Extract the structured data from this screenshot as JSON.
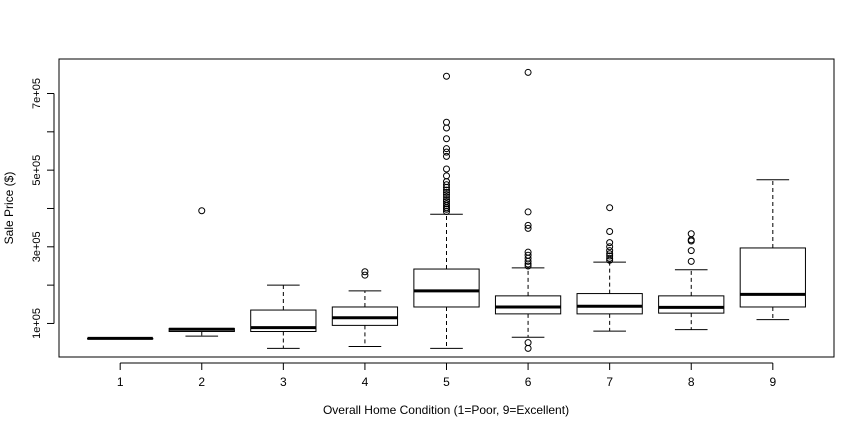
{
  "chart_data": {
    "type": "boxplot",
    "title": "",
    "xlabel": "Overall Home Condition (1=Poor, 9=Excellent)",
    "ylabel": "Sale Price ($)",
    "ylim": [
      12500,
      790000
    ],
    "y_ticks": [
      100000,
      300000,
      500000,
      700000
    ],
    "y_tick_labels": [
      "1e+05",
      "3e+05",
      "5e+05",
      "7e+05"
    ],
    "categories": [
      "1",
      "2",
      "3",
      "4",
      "5",
      "6",
      "7",
      "8",
      "9"
    ],
    "boxes": [
      {
        "category": "1",
        "whisker_low": 61000,
        "q1": 61000,
        "median": 61000,
        "q3": 61000,
        "whisker_high": 61000,
        "outliers": []
      },
      {
        "category": "2",
        "whisker_low": 67000,
        "q1": 79000,
        "median": 85000,
        "q3": 87000,
        "whisker_high": 87000,
        "outliers": [
          394000
        ]
      },
      {
        "category": "3",
        "whisker_low": 35000,
        "q1": 79000,
        "median": 89000,
        "q3": 135000,
        "whisker_high": 200000,
        "outliers": []
      },
      {
        "category": "4",
        "whisker_low": 40000,
        "q1": 95000,
        "median": 115000,
        "q3": 143000,
        "whisker_high": 185000,
        "outliers": [
          226000,
          235000
        ]
      },
      {
        "category": "5",
        "whisker_low": 35000,
        "q1": 143000,
        "median": 185000,
        "q3": 242000,
        "whisker_high": 385000,
        "outliers": [
          392000,
          398000,
          402000,
          407000,
          412000,
          418000,
          423000,
          430000,
          436000,
          442000,
          448000,
          455000,
          462000,
          470000,
          485000,
          503000,
          536000,
          547000,
          556000,
          582000,
          610000,
          625000,
          745000
        ]
      },
      {
        "category": "6",
        "whisker_low": 64000,
        "q1": 125000,
        "median": 143000,
        "q3": 172000,
        "whisker_high": 245000,
        "outliers": [
          35000,
          50000,
          250000,
          255000,
          262000,
          270000,
          278000,
          286000,
          348000,
          356000,
          391000,
          755000
        ]
      },
      {
        "category": "7",
        "whisker_low": 80000,
        "q1": 125000,
        "median": 145000,
        "q3": 178000,
        "whisker_high": 260000,
        "outliers": [
          265000,
          270000,
          276000,
          282000,
          290000,
          300000,
          311000,
          340000,
          402000
        ]
      },
      {
        "category": "8",
        "whisker_low": 84000,
        "q1": 127000,
        "median": 142000,
        "q3": 172000,
        "whisker_high": 240000,
        "outliers": [
          262000,
          290000,
          315000,
          318000,
          334000
        ]
      },
      {
        "category": "9",
        "whisker_low": 110000,
        "q1": 143000,
        "median": 176000,
        "q3": 297000,
        "whisker_high": 475000,
        "outliers": []
      }
    ]
  }
}
